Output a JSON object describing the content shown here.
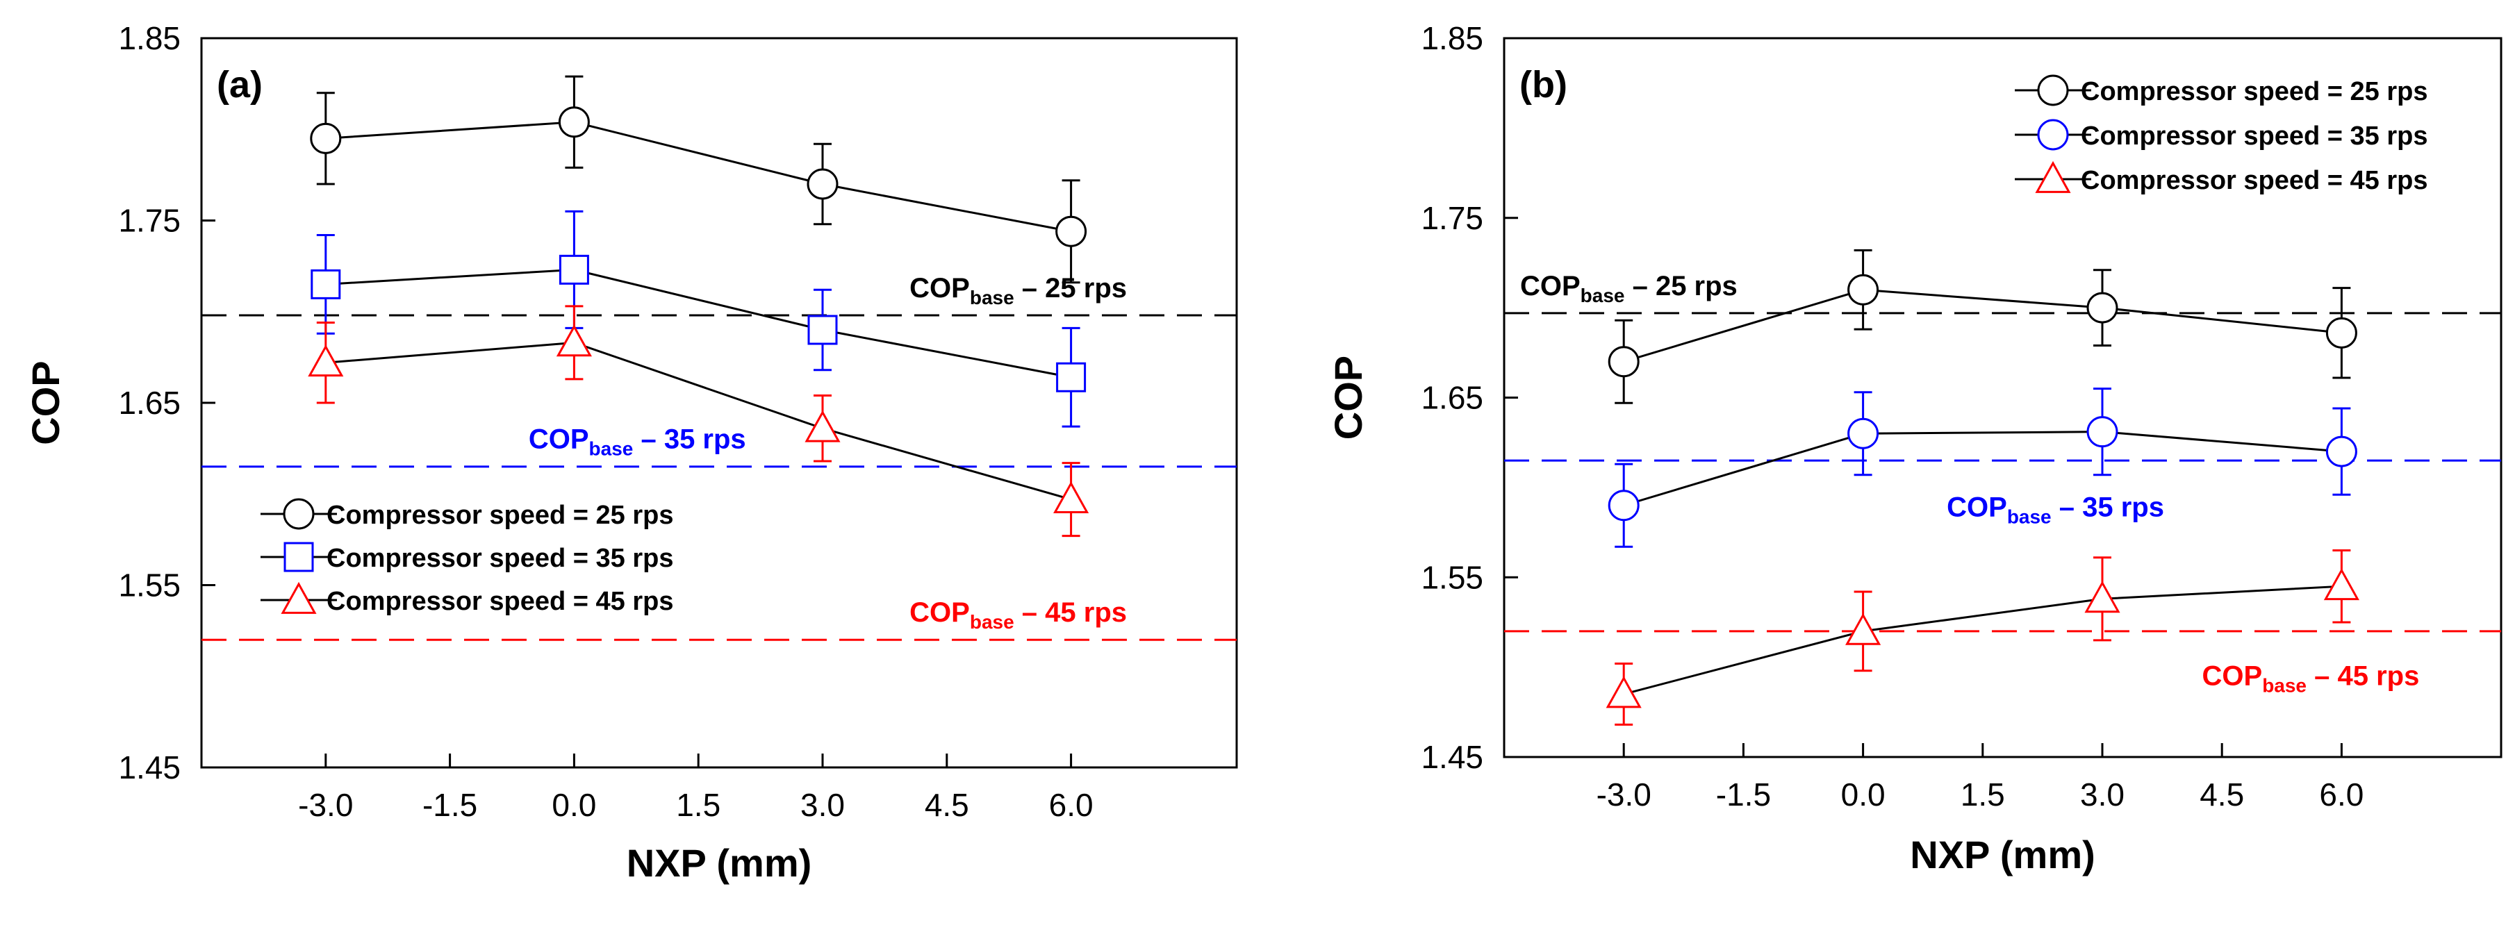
{
  "chart_data": [
    {
      "type": "line",
      "panel_label": "(a)",
      "xlabel": "NXP (mm)",
      "ylabel": "COP",
      "xlim": [
        -4.5,
        8.0
      ],
      "ylim": [
        1.45,
        1.85
      ],
      "xticks": [
        "-3.0",
        "-1.5",
        "0.0",
        "1.5",
        "3.0",
        "4.5",
        "6.0"
      ],
      "xtick_values": [
        -3.0,
        -1.5,
        0.0,
        1.5,
        3.0,
        4.5,
        6.0
      ],
      "yticks": [
        "1.45",
        "1.55",
        "1.65",
        "1.75",
        "1.85"
      ],
      "ytick_values": [
        1.45,
        1.55,
        1.65,
        1.75,
        1.85
      ],
      "legend_position": "bottom-left",
      "x": [
        -3.0,
        0.0,
        3.0,
        6.0
      ],
      "series": [
        {
          "name": "Compressor speed = 25 rps",
          "marker": "circle",
          "color": "#000000",
          "values": [
            1.795,
            1.804,
            1.77,
            1.744
          ],
          "errors": [
            0.025,
            0.025,
            0.022,
            0.028
          ]
        },
        {
          "name": "Compressor speed = 35 rps",
          "marker": "square",
          "color": "#0000ff",
          "values": [
            1.715,
            1.723,
            1.69,
            1.664
          ],
          "errors": [
            0.027,
            0.032,
            0.022,
            0.027
          ]
        },
        {
          "name": "Compressor speed = 45 rps",
          "marker": "triangle",
          "color": "#ff0000",
          "values": [
            1.672,
            1.683,
            1.636,
            1.597
          ],
          "errors": [
            0.022,
            0.02,
            0.018,
            0.02
          ]
        }
      ],
      "reference_lines": [
        {
          "label": "COP",
          "sub": "base",
          "suffix": " – 25 rps",
          "value": 1.698,
          "color": "#000000",
          "label_x": 4.05,
          "label_y": 1.708
        },
        {
          "label": "COP",
          "sub": "base",
          "suffix": " – 35 rps",
          "value": 1.615,
          "color": "#0000ff",
          "label_x": -0.55,
          "label_y": 1.625
        },
        {
          "label": "COP",
          "sub": "base",
          "suffix": " – 45 rps",
          "value": 1.52,
          "color": "#ff0000",
          "label_x": 4.05,
          "label_y": 1.53
        }
      ]
    },
    {
      "type": "line",
      "panel_label": "(b)",
      "xlabel": "NXP (mm)",
      "ylabel": "COP",
      "xlim": [
        -4.5,
        8.0
      ],
      "ylim": [
        1.45,
        1.85
      ],
      "xticks": [
        "-3.0",
        "-1.5",
        "0.0",
        "1.5",
        "3.0",
        "4.5",
        "6.0"
      ],
      "xtick_values": [
        -3.0,
        -1.5,
        0.0,
        1.5,
        3.0,
        4.5,
        6.0
      ],
      "yticks": [
        "1.45",
        "1.55",
        "1.65",
        "1.75",
        "1.85"
      ],
      "ytick_values": [
        1.45,
        1.55,
        1.65,
        1.75,
        1.85
      ],
      "legend_position": "top-right",
      "x": [
        -3.0,
        0.0,
        3.0,
        6.0
      ],
      "series": [
        {
          "name": "Compressor speed = 25 rps",
          "marker": "circle",
          "color": "#000000",
          "values": [
            1.67,
            1.71,
            1.7,
            1.686
          ],
          "errors": [
            0.023,
            0.022,
            0.021,
            0.025
          ]
        },
        {
          "name": "Compressor speed = 35 rps",
          "marker": "circle",
          "color": "#0000ff",
          "values": [
            1.59,
            1.63,
            1.631,
            1.62
          ],
          "errors": [
            0.023,
            0.023,
            0.024,
            0.024
          ]
        },
        {
          "name": "Compressor speed = 45 rps",
          "marker": "triangle",
          "color": "#ff0000",
          "values": [
            1.485,
            1.52,
            1.538,
            1.545
          ],
          "errors": [
            0.017,
            0.022,
            0.023,
            0.02
          ]
        }
      ],
      "reference_lines": [
        {
          "label": "COP",
          "sub": "base",
          "suffix": " – 25 rps",
          "value": 1.697,
          "color": "#000000",
          "label_x": -4.3,
          "label_y": 1.707
        },
        {
          "label": "COP",
          "sub": "base",
          "suffix": " – 35 rps",
          "value": 1.615,
          "color": "#0000ff",
          "label_x": 1.05,
          "label_y": 1.584
        },
        {
          "label": "COP",
          "sub": "base",
          "suffix": " – 45 rps",
          "value": 1.52,
          "color": "#ff0000",
          "label_x": 4.25,
          "label_y": 1.49
        }
      ]
    }
  ]
}
